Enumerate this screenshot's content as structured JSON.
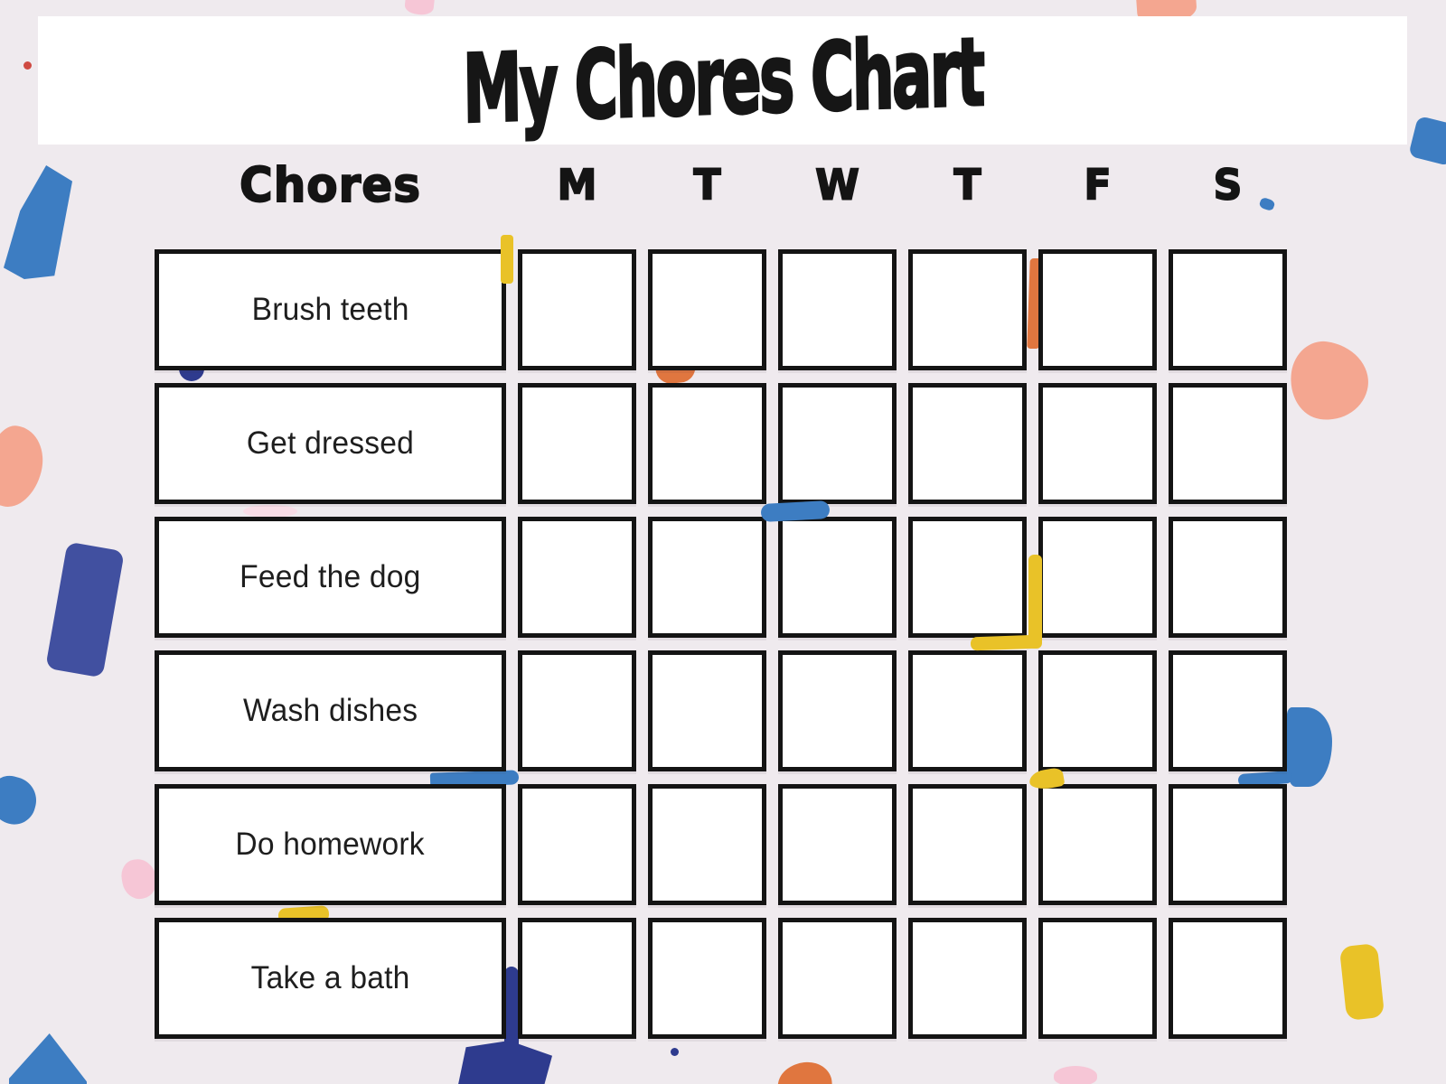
{
  "banner": {
    "title": "My Chores Chart"
  },
  "table": {
    "header_label": "Chores",
    "days": [
      "M",
      "T",
      "W",
      "T",
      "F",
      "S"
    ],
    "chores": [
      "Brush teeth",
      "Get dressed",
      "Feed the dog",
      "Wash dishes",
      "Do homework",
      "Take a bath"
    ]
  },
  "palette": {
    "background": "#efeaee",
    "banner_background": "#ffffff",
    "grid_border": "#141414",
    "text": "#161616",
    "confetti_blue": "#3d7dc2",
    "confetti_navy": "#2e3b8e",
    "confetti_indigo": "#4150a0",
    "confetti_orange": "#e0763f",
    "confetti_salmon": "#f4a690",
    "confetti_pink": "#f6c6d6",
    "confetti_light_pink": "#f8dce6",
    "confetti_yellow": "#e9c228",
    "confetti_red": "#cf4a42"
  }
}
